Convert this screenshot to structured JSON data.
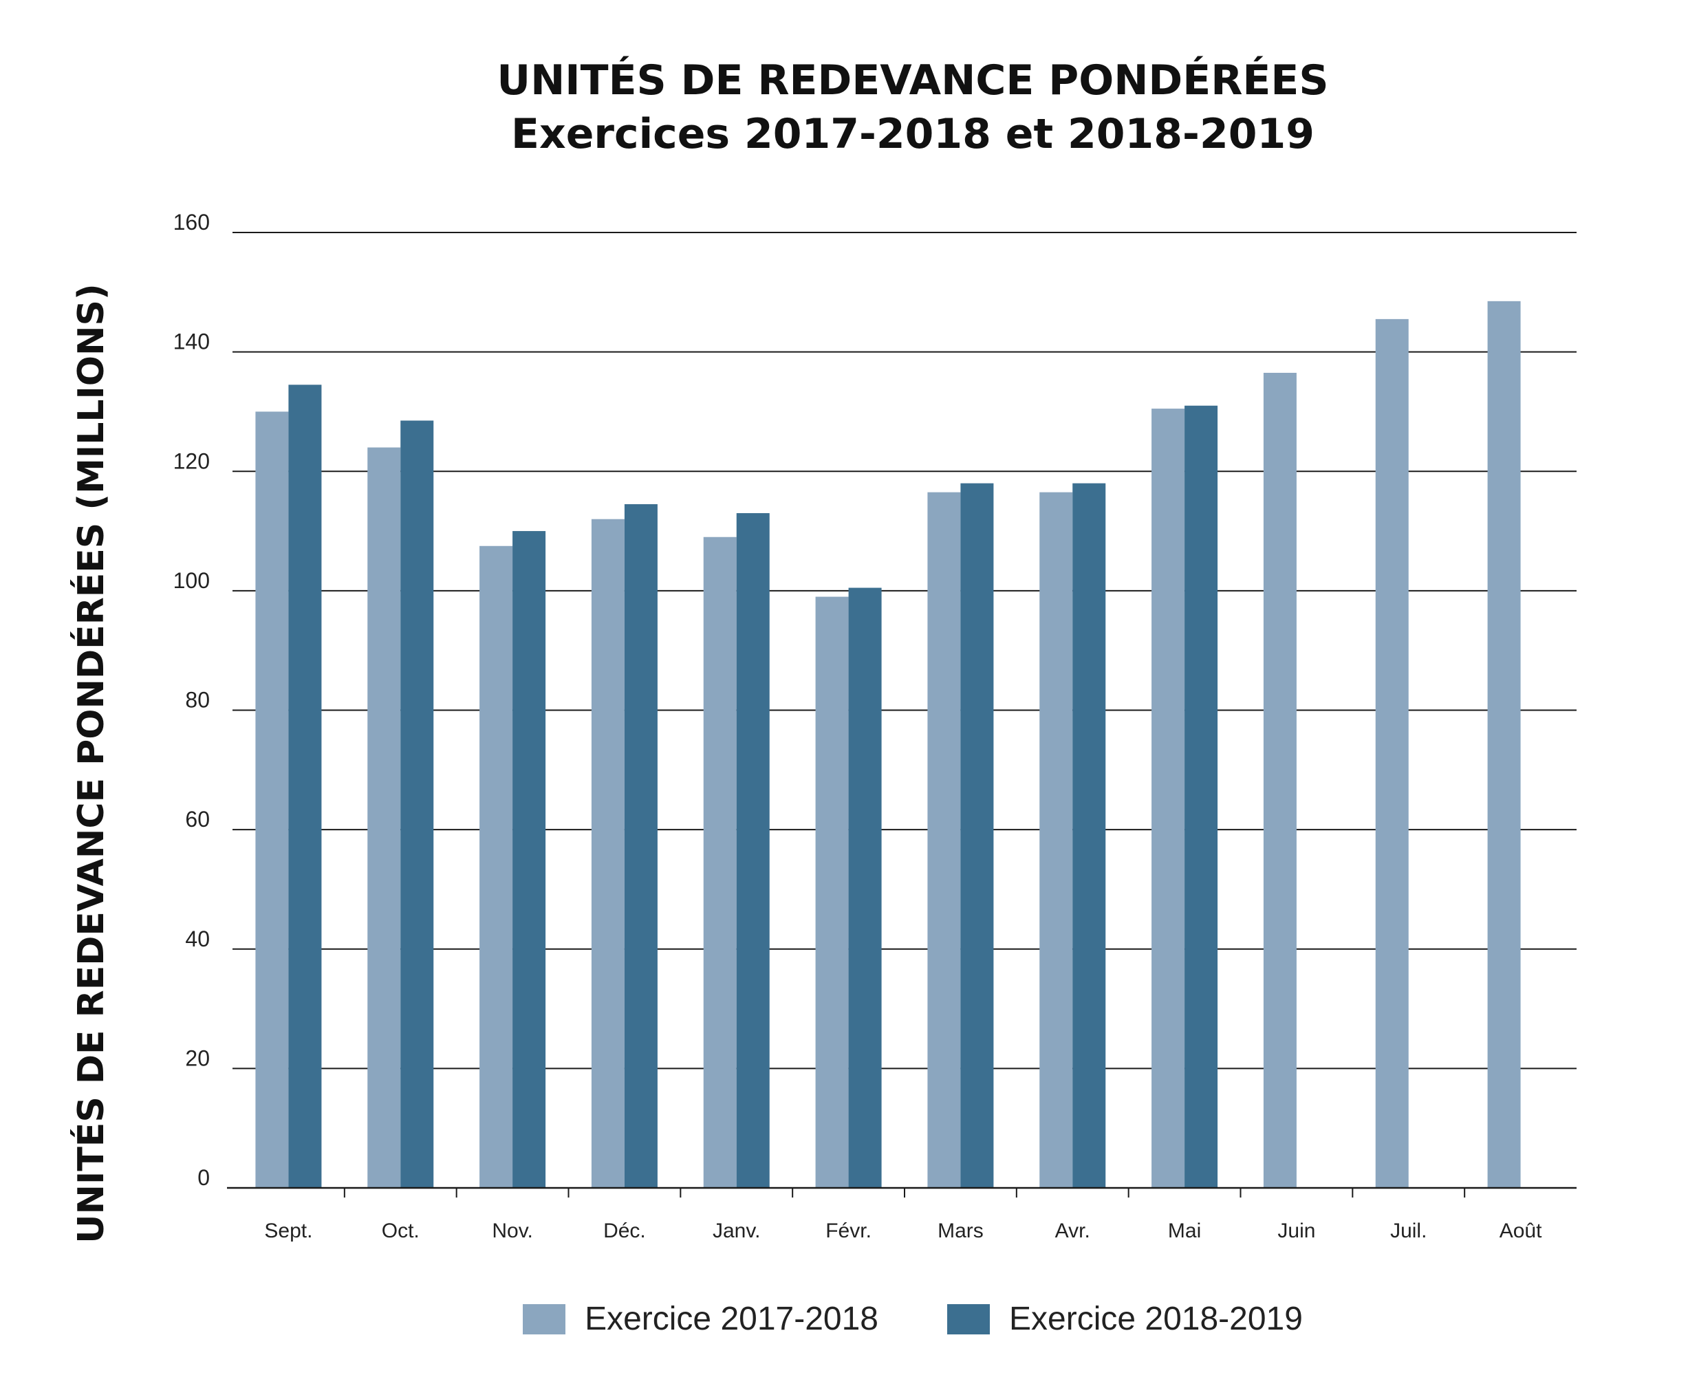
{
  "chart_data": {
    "type": "bar",
    "title": "UNITÉS DE REDEVANCE PONDÉRÉES",
    "subtitle": "Exercices 2017-2018 et 2018-2019",
    "xlabel": "",
    "ylabel": "UNITÉS DE REDEVANCE PONDÉRÉES (MILLIONS)",
    "ylim": [
      0,
      160
    ],
    "yticks": [
      "0",
      "20",
      "40",
      "60",
      "80",
      "100",
      "120",
      "140",
      "160"
    ],
    "grid": true,
    "legend_position": "bottom",
    "categories": [
      "Sept.",
      "Oct.",
      "Nov.",
      "Déc.",
      "Janv.",
      "Févr.",
      "Mars",
      "Avr.",
      "Mai",
      "Juin",
      "Juil.",
      "Août"
    ],
    "series": [
      {
        "name": "Exercice 2017-2018",
        "color": "#8ba6bf",
        "values": [
          130,
          124,
          107.5,
          112,
          109,
          99,
          116.5,
          116.5,
          130.5,
          136.5,
          145.5,
          148.5
        ]
      },
      {
        "name": "Exercice 2018-2019",
        "color": "#3c6f90",
        "values": [
          134.5,
          128.5,
          110,
          114.5,
          113,
          100.5,
          118,
          118,
          131,
          null,
          null,
          null
        ]
      }
    ]
  }
}
